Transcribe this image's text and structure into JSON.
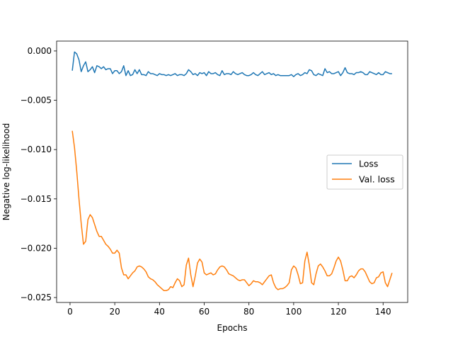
{
  "chart_data": {
    "type": "line",
    "xlabel": "Epochs",
    "ylabel": "Negative log-likelihood",
    "xlim": [
      -6,
      151
    ],
    "ylim": [
      -0.0255,
      0.001
    ],
    "xticks": [
      0,
      20,
      40,
      60,
      80,
      100,
      120,
      140
    ],
    "xtick_labels": [
      "0",
      "20",
      "40",
      "60",
      "80",
      "100",
      "120",
      "140"
    ],
    "yticks": [
      0,
      -0.005,
      -0.01,
      -0.015,
      -0.02,
      -0.025
    ],
    "ytick_labels": [
      "0.000",
      "−0.005",
      "−0.010",
      "−0.015",
      "−0.020",
      "−0.025"
    ],
    "grid": false,
    "legend_position": "center-right",
    "series": [
      {
        "name": "Loss",
        "color": "#1f77b4",
        "x": [
          1,
          2,
          3,
          4,
          5,
          6,
          7,
          8,
          9,
          10,
          11,
          12,
          13,
          14,
          15,
          16,
          17,
          18,
          19,
          20,
          21,
          22,
          23,
          24,
          25,
          26,
          27,
          28,
          29,
          30,
          31,
          32,
          33,
          34,
          35,
          36,
          37,
          38,
          39,
          40,
          41,
          42,
          43,
          44,
          45,
          46,
          47,
          48,
          49,
          50,
          51,
          52,
          53,
          54,
          55,
          56,
          57,
          58,
          59,
          60,
          61,
          62,
          63,
          64,
          65,
          66,
          67,
          68,
          69,
          70,
          71,
          72,
          73,
          74,
          75,
          76,
          77,
          78,
          79,
          80,
          81,
          82,
          83,
          84,
          85,
          86,
          87,
          88,
          89,
          90,
          91,
          92,
          93,
          94,
          95,
          96,
          97,
          98,
          99,
          100,
          101,
          102,
          103,
          104,
          105,
          106,
          107,
          108,
          109,
          110,
          111,
          112,
          113,
          114,
          115,
          116,
          117,
          118,
          119,
          120,
          121,
          122,
          123,
          124,
          125,
          126,
          127,
          128,
          129,
          130,
          131,
          132,
          133,
          134,
          135,
          136,
          137,
          138,
          139,
          140,
          141,
          142,
          143,
          144
        ],
        "y": [
          -0.002,
          -0.0001,
          -0.0003,
          -0.0009,
          -0.0021,
          -0.0015,
          -0.0011,
          -0.0021,
          -0.0019,
          -0.0016,
          -0.0022,
          -0.0015,
          -0.0016,
          -0.0018,
          -0.0016,
          -0.0019,
          -0.0018,
          -0.0018,
          -0.0023,
          -0.002,
          -0.002,
          -0.0023,
          -0.0021,
          -0.0015,
          -0.0025,
          -0.002,
          -0.0025,
          -0.0024,
          -0.0019,
          -0.0023,
          -0.0019,
          -0.0024,
          -0.0024,
          -0.0025,
          -0.0021,
          -0.0023,
          -0.0023,
          -0.0024,
          -0.0025,
          -0.0023,
          -0.0024,
          -0.0024,
          -0.0025,
          -0.0024,
          -0.0025,
          -0.0024,
          -0.0023,
          -0.0025,
          -0.0024,
          -0.0024,
          -0.0025,
          -0.0023,
          -0.0019,
          -0.0021,
          -0.0024,
          -0.0023,
          -0.0025,
          -0.0022,
          -0.0023,
          -0.0022,
          -0.0025,
          -0.0021,
          -0.0023,
          -0.0023,
          -0.0022,
          -0.0024,
          -0.0025,
          -0.002,
          -0.0024,
          -0.0023,
          -0.0023,
          -0.0024,
          -0.0021,
          -0.0023,
          -0.0024,
          -0.0023,
          -0.0022,
          -0.0024,
          -0.0025,
          -0.0025,
          -0.0024,
          -0.0022,
          -0.0024,
          -0.0025,
          -0.0023,
          -0.0021,
          -0.0024,
          -0.0023,
          -0.0022,
          -0.0024,
          -0.0023,
          -0.0025,
          -0.0024,
          -0.0025,
          -0.0025,
          -0.0025,
          -0.0025,
          -0.0025,
          -0.0024,
          -0.0026,
          -0.0024,
          -0.0023,
          -0.0025,
          -0.0024,
          -0.0022,
          -0.0023,
          -0.0019,
          -0.002,
          -0.0024,
          -0.0025,
          -0.0023,
          -0.0024,
          -0.0025,
          -0.0018,
          -0.0022,
          -0.0021,
          -0.0023,
          -0.0023,
          -0.0022,
          -0.0021,
          -0.0025,
          -0.0022,
          -0.0017,
          -0.0022,
          -0.0023,
          -0.0023,
          -0.0024,
          -0.0022,
          -0.0022,
          -0.0021,
          -0.0022,
          -0.0024,
          -0.0024,
          -0.0021,
          -0.0022,
          -0.0023,
          -0.0024,
          -0.0022,
          -0.0024,
          -0.0024,
          -0.0021,
          -0.0022,
          -0.0023,
          -0.0023
        ]
      },
      {
        "name": "Val. loss",
        "color": "#ff7f0e",
        "x": [
          1,
          2,
          3,
          4,
          5,
          6,
          7,
          8,
          9,
          10,
          11,
          12,
          13,
          14,
          15,
          16,
          17,
          18,
          19,
          20,
          21,
          22,
          23,
          24,
          25,
          26,
          27,
          28,
          29,
          30,
          31,
          32,
          33,
          34,
          35,
          36,
          37,
          38,
          39,
          40,
          41,
          42,
          43,
          44,
          45,
          46,
          47,
          48,
          49,
          50,
          51,
          52,
          53,
          54,
          55,
          56,
          57,
          58,
          59,
          60,
          61,
          62,
          63,
          64,
          65,
          66,
          67,
          68,
          69,
          70,
          71,
          72,
          73,
          74,
          75,
          76,
          77,
          78,
          79,
          80,
          81,
          82,
          83,
          84,
          85,
          86,
          87,
          88,
          89,
          90,
          91,
          92,
          93,
          94,
          95,
          96,
          97,
          98,
          99,
          100,
          101,
          102,
          103,
          104,
          105,
          106,
          107,
          108,
          109,
          110,
          111,
          112,
          113,
          114,
          115,
          116,
          117,
          118,
          119,
          120,
          121,
          122,
          123,
          124,
          125,
          126,
          127,
          128,
          129,
          130,
          131,
          132,
          133,
          134,
          135,
          136,
          137,
          138,
          139,
          140,
          141,
          142,
          143,
          144
        ],
        "y": [
          -0.0081,
          -0.0098,
          -0.0122,
          -0.015,
          -0.0175,
          -0.0196,
          -0.0193,
          -0.0171,
          -0.0166,
          -0.0169,
          -0.0176,
          -0.0183,
          -0.0188,
          -0.0188,
          -0.0192,
          -0.0196,
          -0.0198,
          -0.0201,
          -0.0205,
          -0.0205,
          -0.0202,
          -0.0205,
          -0.022,
          -0.0227,
          -0.0227,
          -0.0231,
          -0.0228,
          -0.0225,
          -0.0223,
          -0.0219,
          -0.0218,
          -0.0219,
          -0.0221,
          -0.0224,
          -0.0229,
          -0.0231,
          -0.0232,
          -0.0234,
          -0.0237,
          -0.0239,
          -0.0241,
          -0.0243,
          -0.0243,
          -0.0242,
          -0.0239,
          -0.024,
          -0.0235,
          -0.0231,
          -0.0233,
          -0.0239,
          -0.0237,
          -0.0217,
          -0.021,
          -0.0227,
          -0.0239,
          -0.0228,
          -0.0215,
          -0.0211,
          -0.0214,
          -0.0225,
          -0.0227,
          -0.0226,
          -0.0225,
          -0.0227,
          -0.0226,
          -0.0222,
          -0.0219,
          -0.0218,
          -0.0219,
          -0.0222,
          -0.0226,
          -0.0227,
          -0.0228,
          -0.023,
          -0.0232,
          -0.0233,
          -0.0232,
          -0.0232,
          -0.0235,
          -0.0238,
          -0.0236,
          -0.0233,
          -0.0234,
          -0.0234,
          -0.0235,
          -0.0237,
          -0.0234,
          -0.0231,
          -0.0228,
          -0.0227,
          -0.0235,
          -0.024,
          -0.0242,
          -0.0241,
          -0.0241,
          -0.024,
          -0.0238,
          -0.0235,
          -0.0222,
          -0.0218,
          -0.022,
          -0.0227,
          -0.0236,
          -0.0235,
          -0.0213,
          -0.0204,
          -0.0217,
          -0.0235,
          -0.0237,
          -0.0226,
          -0.0218,
          -0.0216,
          -0.0219,
          -0.0223,
          -0.0228,
          -0.0228,
          -0.0226,
          -0.022,
          -0.0213,
          -0.0209,
          -0.0213,
          -0.0222,
          -0.0233,
          -0.0233,
          -0.0229,
          -0.0228,
          -0.023,
          -0.0227,
          -0.0223,
          -0.0221,
          -0.0221,
          -0.0224,
          -0.0229,
          -0.0234,
          -0.0236,
          -0.0235,
          -0.023,
          -0.0229,
          -0.0225,
          -0.0224,
          -0.0235,
          -0.0239,
          -0.0232,
          -0.0225
        ]
      }
    ]
  }
}
